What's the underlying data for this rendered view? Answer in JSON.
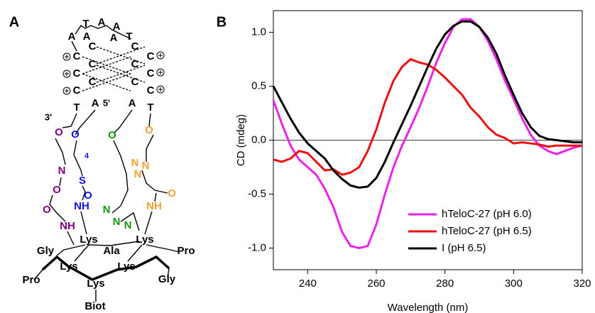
{
  "panel_a": {
    "label": "A",
    "labels": [
      "A",
      "T",
      "A",
      "A",
      "A",
      "A",
      "T",
      "C",
      "C",
      "C",
      "T",
      "C",
      "C",
      "C",
      "A",
      "C",
      "C",
      "C",
      "A",
      "C",
      "C",
      "C",
      "T",
      "3'",
      "5'",
      "O",
      "N",
      "O",
      "O",
      "NH",
      "O",
      "4",
      "S",
      "O",
      "NH",
      "O",
      "N",
      "N",
      "N",
      "O",
      "N",
      "N",
      "N",
      "O",
      "NH",
      "Lys",
      "Lys",
      "Ala",
      "Gly",
      "Pro",
      "Lys",
      "Lys",
      "Pro",
      "Gly",
      "Lys",
      "Biot"
    ]
  },
  "panel_b": {
    "label": "B"
  },
  "chart_data": {
    "type": "line",
    "x_label": "Wavelength (nm)",
    "y_label": "CD (mdeg)",
    "x": [
      230,
      232.5,
      235,
      237.5,
      240,
      242.5,
      245,
      247.5,
      250,
      252.5,
      255,
      257.5,
      260,
      262.5,
      265,
      267.5,
      270,
      272.5,
      275,
      277.5,
      280,
      282.5,
      285,
      287.5,
      290,
      292.5,
      295,
      297.5,
      300,
      302.5,
      305,
      307.5,
      310,
      312.5,
      315,
      317.5,
      320
    ],
    "series": [
      {
        "name": "hTeloC-27 (pH 6.0)",
        "color": "#ee22ee",
        "values": [
          0.37,
          0.15,
          -0.05,
          -0.18,
          -0.25,
          -0.32,
          -0.45,
          -0.62,
          -0.85,
          -0.98,
          -1.0,
          -0.98,
          -0.78,
          -0.5,
          -0.25,
          -0.05,
          0.12,
          0.3,
          0.5,
          0.72,
          0.9,
          1.05,
          1.12,
          1.12,
          1.05,
          0.92,
          0.75,
          0.55,
          0.38,
          0.2,
          0.05,
          -0.05,
          -0.1,
          -0.13,
          -0.1,
          -0.07,
          -0.05
        ]
      },
      {
        "name": "hTeloC-27 (pH 6.5)",
        "color": "#ee1111",
        "values": [
          -0.18,
          -0.2,
          -0.17,
          -0.1,
          -0.12,
          -0.2,
          -0.28,
          -0.27,
          -0.32,
          -0.3,
          -0.25,
          -0.1,
          0.1,
          0.35,
          0.55,
          0.68,
          0.75,
          0.72,
          0.7,
          0.65,
          0.58,
          0.5,
          0.42,
          0.3,
          0.22,
          0.12,
          0.05,
          0.02,
          -0.03,
          -0.02,
          -0.03,
          -0.04,
          -0.06,
          -0.05,
          -0.05,
          -0.05,
          -0.05
        ]
      },
      {
        "name": "I (pH 6.5)",
        "color": "#000000",
        "values": [
          0.5,
          0.35,
          0.2,
          0.07,
          -0.03,
          -0.1,
          -0.17,
          -0.28,
          -0.36,
          -0.42,
          -0.44,
          -0.43,
          -0.35,
          -0.2,
          -0.02,
          0.15,
          0.32,
          0.5,
          0.68,
          0.85,
          0.98,
          1.06,
          1.1,
          1.1,
          1.05,
          0.95,
          0.8,
          0.6,
          0.42,
          0.25,
          0.12,
          0.04,
          0.01,
          0.0,
          -0.01,
          -0.02,
          -0.02
        ]
      }
    ],
    "xlim": [
      230,
      320
    ],
    "xticks": [
      240,
      260,
      280,
      300,
      320
    ],
    "ylim": [
      -1.2,
      1.2
    ],
    "yticks": [
      {
        "value": -1,
        "label": "-1.0"
      },
      -0.5,
      {
        "value": 0,
        "label": "0.0"
      },
      0.5,
      {
        "value": 1,
        "label": "1.0"
      }
    ],
    "zero_line": true,
    "legend": "lower-right"
  }
}
